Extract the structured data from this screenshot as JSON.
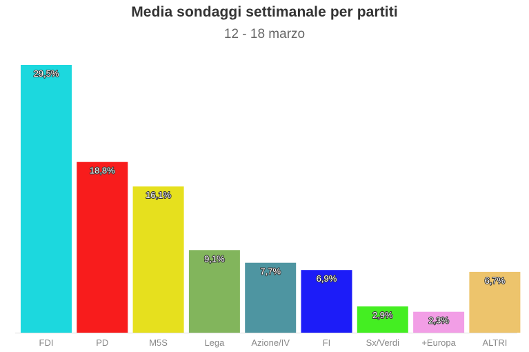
{
  "chart_data": {
    "type": "bar",
    "title": "Media sondaggi settimanale per partiti",
    "subtitle": "12 - 18 marzo",
    "categories": [
      "FDI",
      "PD",
      "M5S",
      "Lega",
      "Azione/IV",
      "FI",
      "Sx/Verdi",
      "+Europa",
      "ALTRI"
    ],
    "values": [
      29.5,
      18.8,
      16.1,
      9.1,
      7.7,
      6.9,
      2.9,
      2.3,
      6.7
    ],
    "value_labels": [
      "29,5%",
      "18,8%",
      "16,1%",
      "9,1%",
      "7,7%",
      "6,9%",
      "2,9%",
      "2,3%",
      "6,7%"
    ],
    "colors": [
      "#1cd8de",
      "#f81c1c",
      "#e6e01e",
      "#82b55c",
      "#4e95a1",
      "#1c1cf8",
      "#44ee22",
      "#f29ee6",
      "#edc46c"
    ],
    "ylim": [
      0,
      29.5
    ],
    "grid": false,
    "legend": "none"
  }
}
